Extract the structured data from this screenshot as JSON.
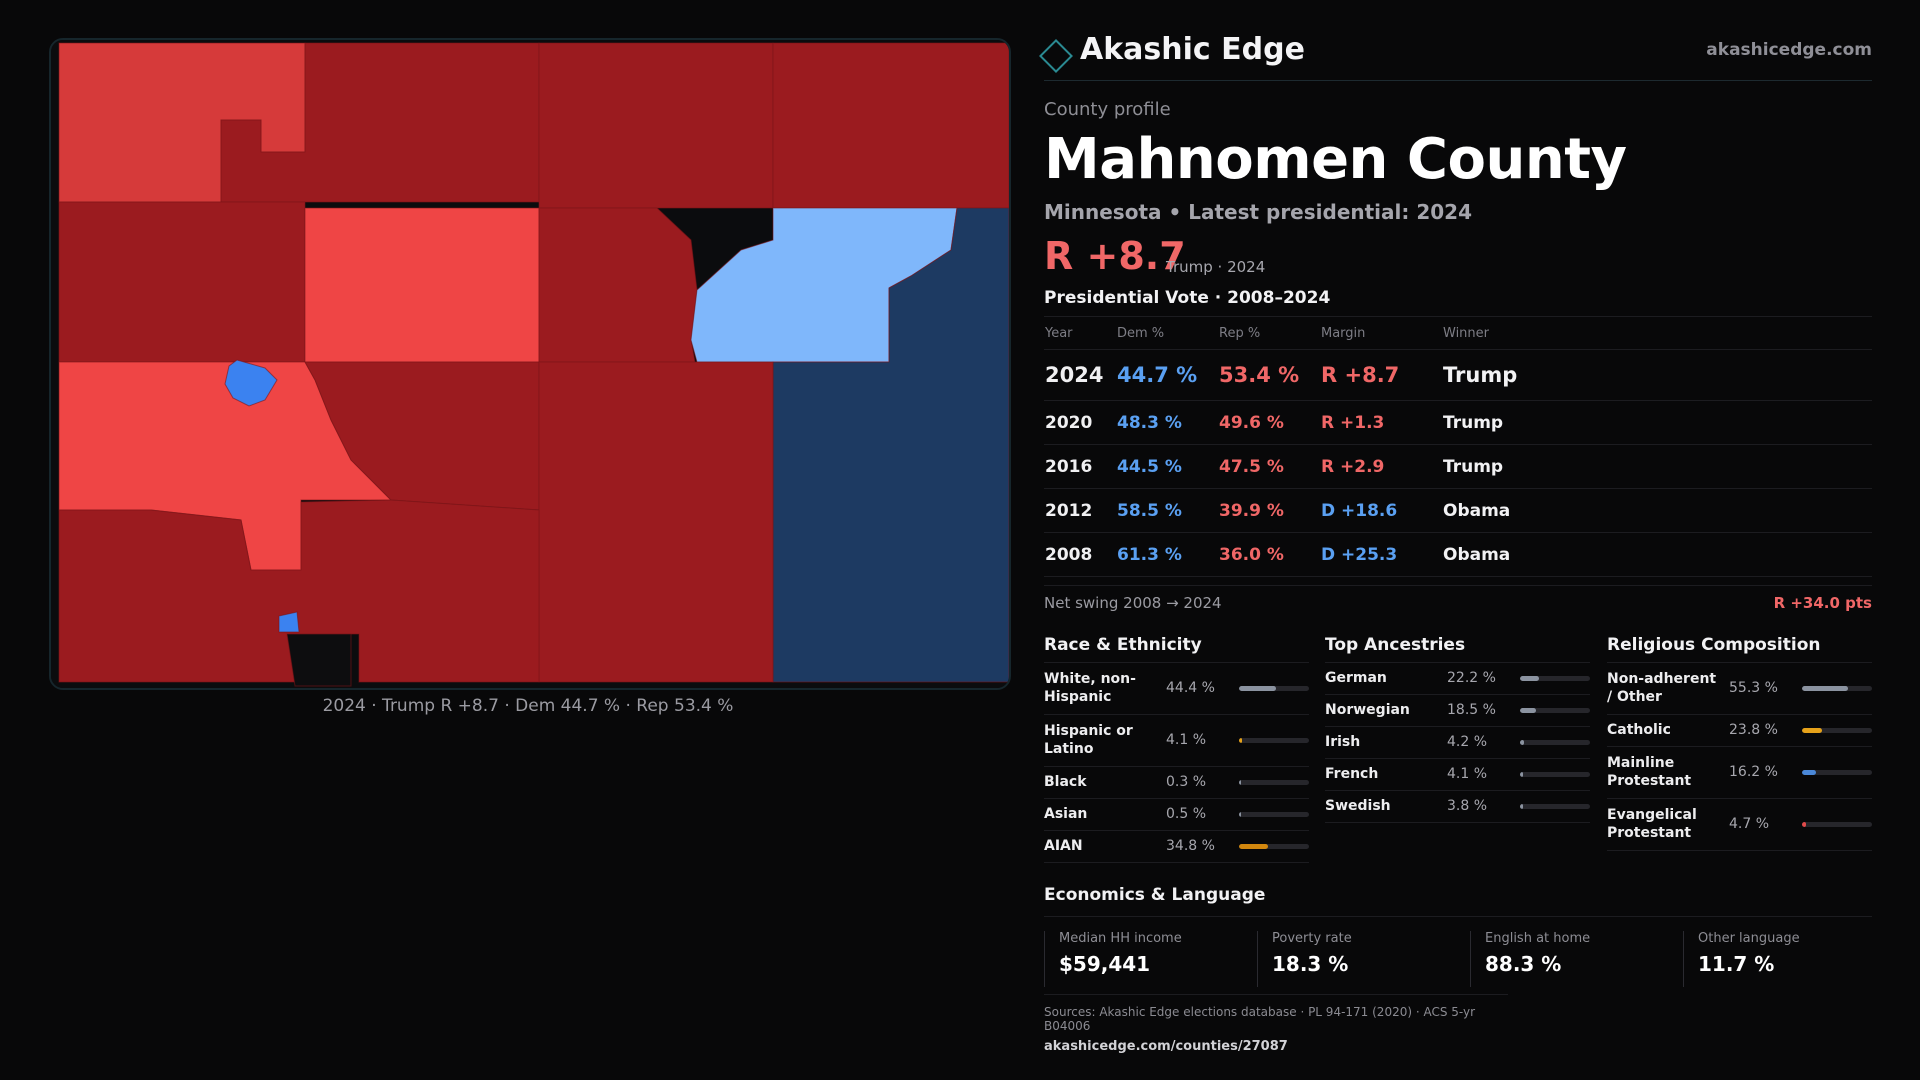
{
  "map": {
    "caption": "2024 · Trump R +8.7 · Dem 44.7 % · Rep 53.4 %",
    "colors": {
      "lean_r": "#d63a3a",
      "likely_r": "#ef4545",
      "safe_r": "#9b1b1f",
      "lean_d": "#7fb7fb",
      "safe_d": "#1d3a62",
      "dem_town": "#3b82f0",
      "no_data": "#0d0d0f"
    }
  },
  "header": {
    "brand": "Akashic Edge",
    "site": "akashicedge.com",
    "logo_icon": "diamond-outline"
  },
  "profile": {
    "label": "County profile",
    "county": "Mahnomen County",
    "subtitle": "Minnesota • Latest presidential: 2024",
    "headline_margin": "R +8.7",
    "headline_who": "Trump · 2024"
  },
  "votes": {
    "title": "Presidential Vote · 2008–2024",
    "headers": {
      "year": "Year",
      "dem": "Dem %",
      "rep": "Rep %",
      "margin": "Margin",
      "winner": "Winner"
    },
    "rows": [
      {
        "year": "2024",
        "dem": "44.7 %",
        "rep": "53.4 %",
        "margin": "R +8.7",
        "party": "R",
        "winner": "Trump"
      },
      {
        "year": "2020",
        "dem": "48.3 %",
        "rep": "49.6 %",
        "margin": "R +1.3",
        "party": "R",
        "winner": "Trump"
      },
      {
        "year": "2016",
        "dem": "44.5 %",
        "rep": "47.5 %",
        "margin": "R +2.9",
        "party": "R",
        "winner": "Trump"
      },
      {
        "year": "2012",
        "dem": "58.5 %",
        "rep": "39.9 %",
        "margin": "D +18.6",
        "party": "D",
        "winner": "Obama"
      },
      {
        "year": "2008",
        "dem": "61.3 %",
        "rep": "36.0 %",
        "margin": "D +25.3",
        "party": "D",
        "winner": "Obama"
      }
    ],
    "swing_label": "Net swing 2008 → 2024",
    "swing_value": "R +34.0 pts"
  },
  "race": {
    "title": "Race & Ethnicity",
    "items": [
      {
        "label": "White, non-Hispanic",
        "pct": "44.4 %",
        "share": 44.4,
        "color": "#8b93a0"
      },
      {
        "label": "Hispanic or Latino",
        "pct": "4.1 %",
        "share": 4.1,
        "color": "#e6a21a"
      },
      {
        "label": "Black",
        "pct": "0.3 %",
        "share": 0.3,
        "color": "#8b93a0"
      },
      {
        "label": "Asian",
        "pct": "0.5 %",
        "share": 0.5,
        "color": "#8b93a0"
      },
      {
        "label": "AIAN",
        "pct": "34.8 %",
        "share": 34.8,
        "color": "#d2870e"
      }
    ]
  },
  "ancestry": {
    "title": "Top Ancestries",
    "items": [
      {
        "label": "German",
        "pct": "22.2 %",
        "share": 22.2,
        "color": "#8b93a0"
      },
      {
        "label": "Norwegian",
        "pct": "18.5 %",
        "share": 18.5,
        "color": "#8b93a0"
      },
      {
        "label": "Irish",
        "pct": "4.2 %",
        "share": 4.2,
        "color": "#8b93a0"
      },
      {
        "label": "French",
        "pct": "4.1 %",
        "share": 4.1,
        "color": "#8b93a0"
      },
      {
        "label": "Swedish",
        "pct": "3.8 %",
        "share": 3.8,
        "color": "#8b93a0"
      }
    ]
  },
  "religion": {
    "title": "Religious Composition",
    "items": [
      {
        "label": "Non-adherent / Other",
        "pct": "55.3 %",
        "share": 55.3,
        "color": "#8b93a0"
      },
      {
        "label": "Catholic",
        "pct": "23.8 %",
        "share": 23.8,
        "color": "#e6a21a"
      },
      {
        "label": "Mainline Protestant",
        "pct": "16.2 %",
        "share": 16.2,
        "color": "#4a88d8"
      },
      {
        "label": "Evangelical Protestant",
        "pct": "4.7 %",
        "share": 4.7,
        "color": "#e04a4a"
      }
    ]
  },
  "econ": {
    "title": "Economics & Language",
    "cells": [
      {
        "label": "Median HH income",
        "value": "$59,441"
      },
      {
        "label": "Poverty rate",
        "value": "18.3 %"
      },
      {
        "label": "English at home",
        "value": "88.3 %"
      },
      {
        "label": "Other language",
        "value": "11.7 %"
      }
    ]
  },
  "footer": {
    "sources": "Sources: Akashic Edge elections database · PL 94-171 (2020) · ACS 5-yr B04006",
    "url": "akashicedge.com/counties/27087"
  }
}
